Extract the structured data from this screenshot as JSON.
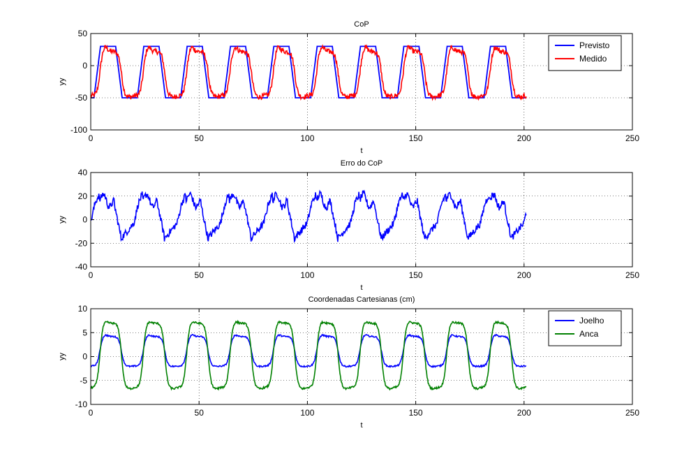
{
  "chart_data": [
    {
      "type": "line",
      "title": "CoP",
      "xlabel": "t",
      "ylabel": "yy",
      "xlim": [
        0,
        250
      ],
      "ylim": [
        -100,
        50
      ],
      "xticks": [
        "0",
        "50",
        "100",
        "150",
        "200",
        "250"
      ],
      "yticks": [
        "-100",
        "-50",
        "0",
        "50"
      ],
      "grid": true,
      "legend": "top-right",
      "period": 20,
      "x_end": 201,
      "series": [
        {
          "name": "Previsto",
          "color": "#0000ff",
          "shape": "trapezoid",
          "low": -50,
          "high": 30,
          "rise_start": 1.5,
          "rise_end": 4.5,
          "fall_start": 11.5,
          "fall_end": 14.5,
          "noise": 0
        },
        {
          "name": "Medido",
          "color": "#ff0000",
          "shape": "smooth",
          "low": -47,
          "high": 22,
          "peak": 30,
          "noise": 4
        }
      ]
    },
    {
      "type": "line",
      "title": "Erro do CoP",
      "xlabel": "t",
      "ylabel": "yy",
      "xlim": [
        0,
        250
      ],
      "ylim": [
        -40,
        40
      ],
      "xticks": [
        "0",
        "50",
        "100",
        "150",
        "200",
        "250"
      ],
      "yticks": [
        "-40",
        "-20",
        "0",
        "20",
        "40"
      ],
      "grid": true,
      "legend": "none",
      "period": 20,
      "x_end": 201,
      "series": [
        {
          "name": "",
          "color": "#0000ff",
          "shape": "error",
          "min": -20,
          "max": 24,
          "noise": 3
        }
      ]
    },
    {
      "type": "line",
      "title": "Coordenadas Cartesianas (cm)",
      "xlabel": "t",
      "ylabel": "yy",
      "xlim": [
        0,
        250
      ],
      "ylim": [
        -10,
        10
      ],
      "xticks": [
        "0",
        "50",
        "100",
        "150",
        "200",
        "250"
      ],
      "yticks": [
        "-10",
        "-5",
        "0",
        "5",
        "10"
      ],
      "grid": true,
      "legend": "top-right",
      "period": 20,
      "x_end": 201,
      "series": [
        {
          "name": "Joelho",
          "color": "#0000ff",
          "shape": "smooth",
          "low": -2,
          "high": 4.2,
          "peak": 4.6,
          "noise": 0.15
        },
        {
          "name": "Anca",
          "color": "#008000",
          "shape": "smooth",
          "low": -6.5,
          "high": 7,
          "peak": 7.4,
          "noise": 0.2
        }
      ]
    }
  ]
}
